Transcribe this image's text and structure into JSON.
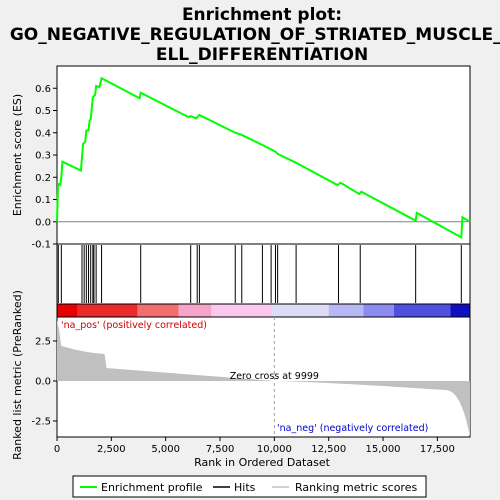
{
  "chart_data": {
    "type": "line",
    "title_lines": [
      "Enrichment plot:",
      "GO_NEGATIVE_REGULATION_OF_STRIATED_MUSCLE_C",
      "ELL_DIFFERENTIATION"
    ],
    "ylabel_top": "Enrichment score (ES)",
    "ylabel_bottom": "Ranked list metric (PreRanked)",
    "xlabel": "Rank in Ordered Dataset",
    "xlim": [
      0,
      19000
    ],
    "es_ylim": [
      -0.1,
      0.7
    ],
    "es_yticks": [
      "-0.1",
      "0.0",
      "0.1",
      "0.2",
      "0.3",
      "0.4",
      "0.5",
      "0.6"
    ],
    "es_ytick_values": [
      -0.1,
      0.0,
      0.1,
      0.2,
      0.3,
      0.4,
      0.5,
      0.6
    ],
    "metric_ylim": [
      -3.5,
      4.0
    ],
    "metric_yticks": [
      "-2.5",
      "0.0",
      "2.5"
    ],
    "metric_ytick_values": [
      -2.5,
      0.0,
      2.5
    ],
    "xticks": [
      "0",
      "2,500",
      "5,000",
      "7,500",
      "10,000",
      "12,500",
      "15,000",
      "17,500"
    ],
    "xtick_values": [
      0,
      2500,
      5000,
      7500,
      10000,
      12500,
      15000,
      17500
    ],
    "es_profile": {
      "x": [
        0,
        50,
        150,
        200,
        250,
        1100,
        1150,
        1200,
        1250,
        1300,
        1350,
        1450,
        1500,
        1550,
        1600,
        1650,
        1700,
        1750,
        1800,
        1950,
        2050,
        3800,
        3850,
        6050,
        6150,
        6400,
        6500,
        6550,
        8200,
        8500,
        9450,
        9850,
        10050,
        10150,
        11000,
        12900,
        13050,
        13900,
        14000,
        16500,
        16550,
        18600,
        18650,
        19000
      ],
      "y": [
        0.0,
        0.17,
        0.165,
        0.2,
        0.27,
        0.23,
        0.29,
        0.35,
        0.355,
        0.36,
        0.41,
        0.41,
        0.455,
        0.46,
        0.51,
        0.56,
        0.565,
        0.57,
        0.61,
        0.605,
        0.645,
        0.555,
        0.58,
        0.47,
        0.475,
        0.465,
        0.475,
        0.48,
        0.4,
        0.39,
        0.345,
        0.325,
        0.315,
        0.305,
        0.265,
        0.165,
        0.175,
        0.125,
        0.135,
        0.005,
        0.04,
        -0.07,
        0.02,
        0.0
      ]
    },
    "hits": [
      60,
      200,
      1150,
      1250,
      1350,
      1450,
      1550,
      1650,
      1700,
      1800,
      2050,
      3850,
      6150,
      6450,
      6550,
      8200,
      8500,
      9450,
      9850,
      10050,
      10150,
      11000,
      12950,
      13950,
      16500,
      18600
    ],
    "zero_cross_label": "Zero cross at 9999",
    "zero_cross_x": 9999,
    "pos_label": "'na_pos' (positively correlated)",
    "neg_label": "'na_neg' (negatively correlated)",
    "legend": [
      "Enrichment profile",
      "Hits",
      "Ranking metric scores"
    ],
    "colors": {
      "profile": "#00ff00",
      "hits": "#000000",
      "metric_fill": "#c0c0c0",
      "pos_text": "#cc0000",
      "neg_text": "#0000cc",
      "zero_cross_line": "#a0a0a0",
      "background": "#f0f0f0",
      "plot_bg": "#ffffff"
    },
    "heat_bar_colors": [
      "#e60000",
      "#ea2a2a",
      "#f07070",
      "#f5a3c8",
      "#fac8ec",
      "#dcdcf8",
      "#b8b8f5",
      "#8c8cf0",
      "#5050e0",
      "#1010c0"
    ],
    "heat_bar_breaks": [
      0,
      950,
      3700,
      5600,
      7100,
      9900,
      12500,
      14100,
      15500,
      18100,
      19000
    ]
  }
}
